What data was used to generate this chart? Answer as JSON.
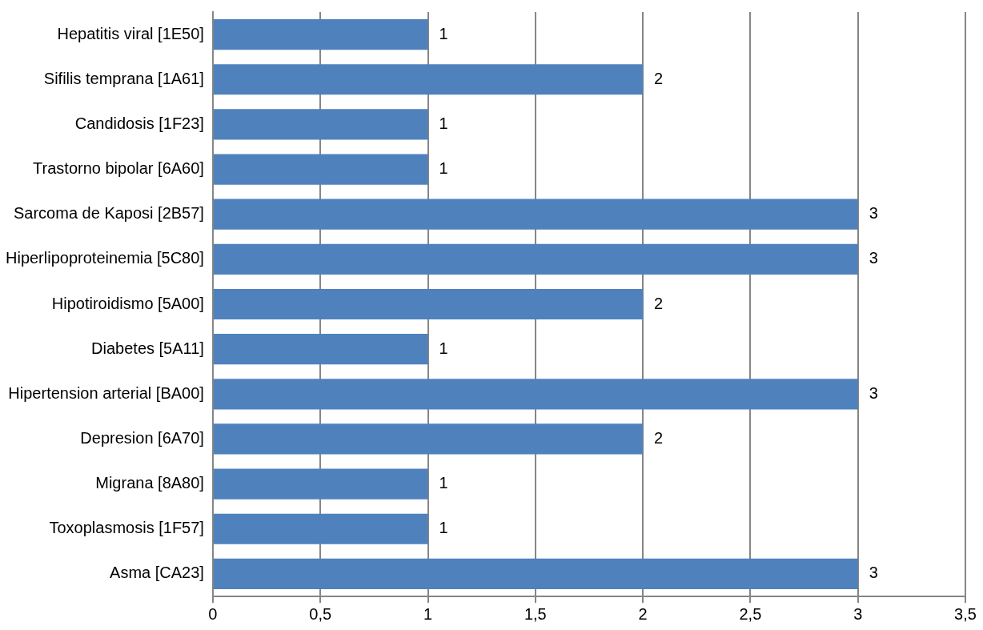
{
  "chart_data": {
    "type": "bar",
    "orientation": "horizontal",
    "categories": [
      "Hepatitis viral [1E50]",
      "Sifilis temprana [1A61]",
      "Candidosis [1F23]",
      "Trastorno bipolar [6A60]",
      "Sarcoma de Kaposi [2B57]",
      "Hiperlipoproteinemia [5C80]",
      "Hipotiroidismo [5A00]",
      "Diabetes [5A11]",
      "Hipertension arterial [BA00]",
      "Depresion [6A70]",
      "Migrana [8A80]",
      "Toxoplasmosis [1F57]",
      "Asma [CA23]"
    ],
    "values": [
      1,
      2,
      1,
      1,
      3,
      3,
      2,
      1,
      3,
      2,
      1,
      1,
      3
    ],
    "color": "#4f81bd",
    "xlim": [
      0,
      3.5
    ],
    "xticks": [
      0,
      {
        "value": 0.5,
        "label": "0,5"
      },
      1,
      {
        "value": 1.5,
        "label": "1,5"
      },
      2,
      {
        "value": 2.5,
        "label": "2,5"
      },
      3,
      {
        "value": 3.5,
        "label": "3,5"
      }
    ],
    "grid": "x",
    "data_labels": true
  }
}
